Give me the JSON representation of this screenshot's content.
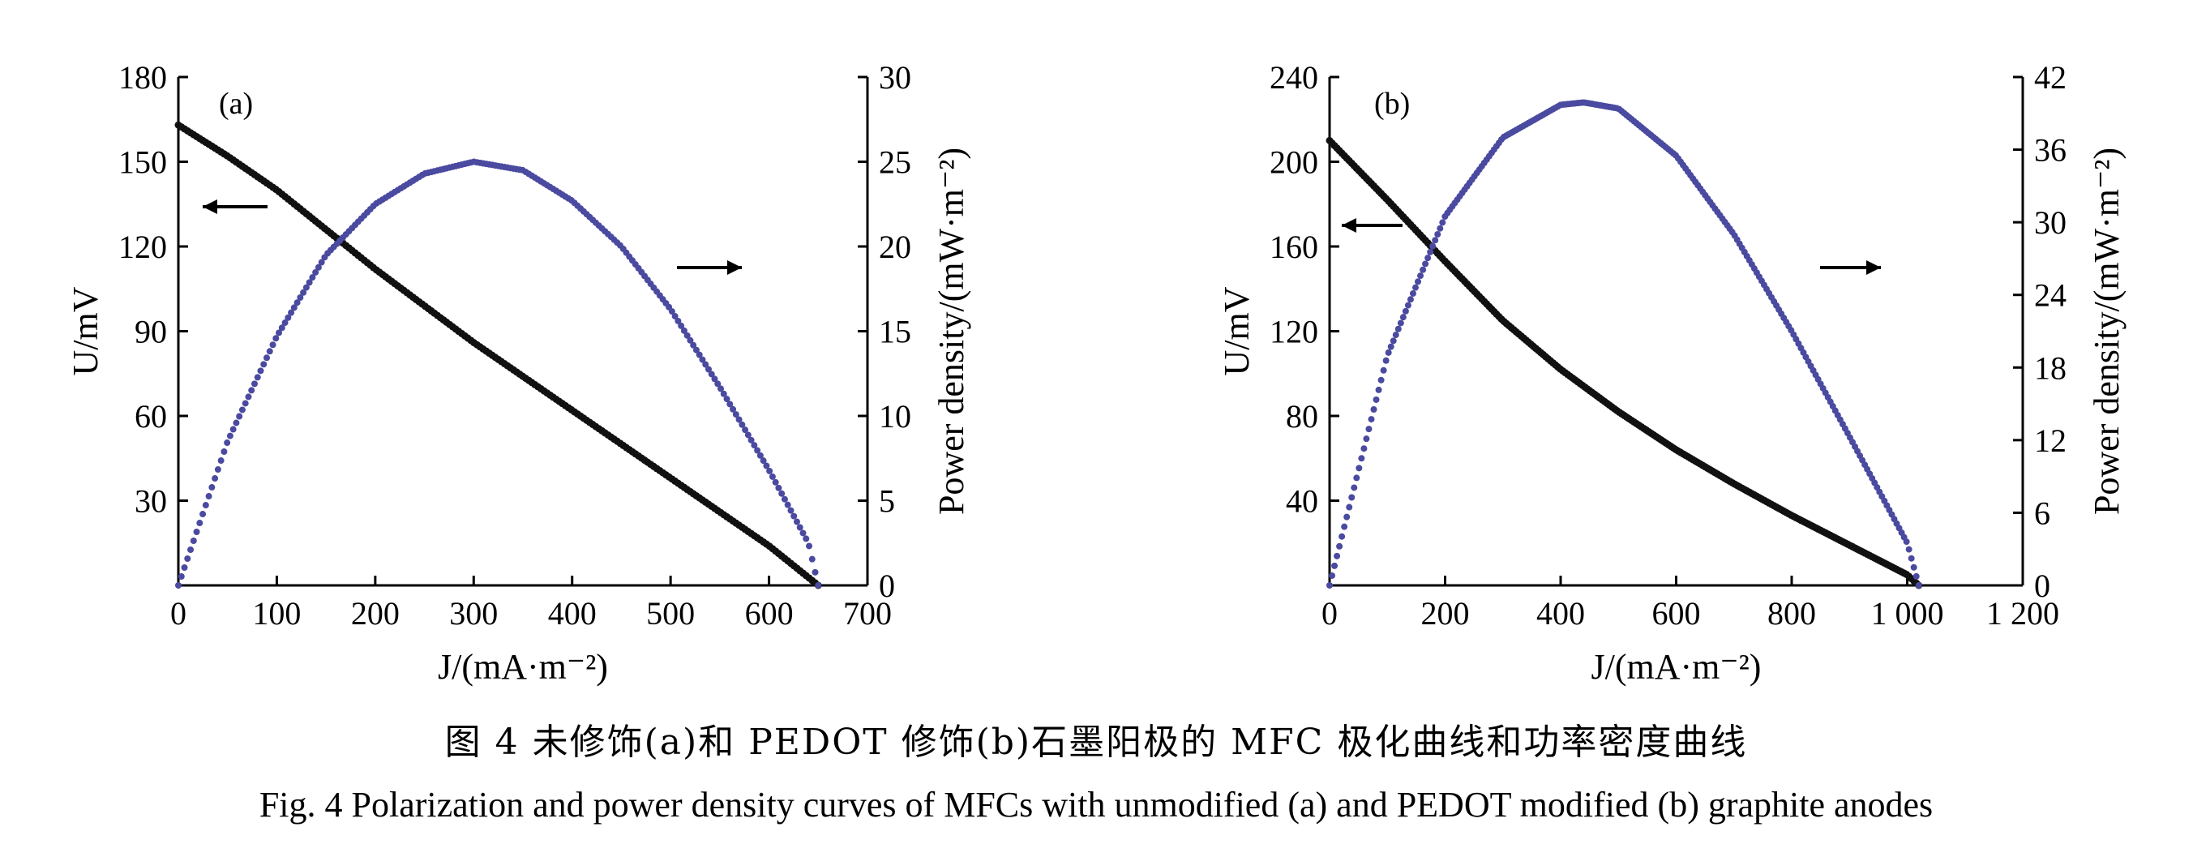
{
  "chart_data": [
    {
      "type": "line",
      "panel_label": "(a)",
      "xlabel": "J/(mA·m⁻²)",
      "ylabel": "U/mV",
      "y2label": "Power density/(mW·m⁻²)",
      "xlim": [
        0,
        700
      ],
      "ylim": [
        0,
        180
      ],
      "y2lim": [
        0,
        30
      ],
      "xticks": [
        "0",
        "100",
        "200",
        "300",
        "400",
        "500",
        "600",
        "700"
      ],
      "yticks": [
        "30",
        "60",
        "90",
        "120",
        "150",
        "180"
      ],
      "y2ticks": [
        "0",
        "5",
        "10",
        "15",
        "20",
        "25",
        "30"
      ],
      "colors": {
        "voltage": "#111111",
        "power": "#4a4aa0"
      },
      "series": [
        {
          "axis": "left",
          "x": [
            0,
            50,
            100,
            150,
            200,
            250,
            300,
            350,
            400,
            450,
            500,
            550,
            600,
            650
          ],
          "values": [
            163,
            152,
            140,
            126,
            112,
            99,
            86,
            74,
            62,
            50,
            38,
            26,
            14,
            0
          ]
        },
        {
          "axis": "right",
          "x": [
            0,
            50,
            100,
            150,
            200,
            250,
            300,
            350,
            400,
            450,
            500,
            550,
            600,
            640,
            650
          ],
          "values": [
            0,
            8.5,
            14.7,
            19.5,
            22.5,
            24.3,
            25.0,
            24.5,
            22.7,
            20.0,
            16.3,
            11.7,
            6.8,
            2.5,
            0
          ]
        }
      ]
    },
    {
      "type": "line",
      "panel_label": "(b)",
      "xlabel": "J/(mA·m⁻²)",
      "ylabel": "U/mV",
      "y2label": "Power density/(mW·m⁻²)",
      "xlim": [
        0,
        1200
      ],
      "ylim": [
        0,
        240
      ],
      "y2lim": [
        0,
        42
      ],
      "xticks": [
        "0",
        "200",
        "400",
        "600",
        "800",
        "1 000",
        "1 200"
      ],
      "yticks": [
        "40",
        "80",
        "120",
        "160",
        "200",
        "240"
      ],
      "y2ticks": [
        "0",
        "6",
        "12",
        "18",
        "24",
        "30",
        "36",
        "42"
      ],
      "colors": {
        "voltage": "#111111",
        "power": "#4a4aa0"
      },
      "series": [
        {
          "axis": "left",
          "x": [
            0,
            100,
            200,
            300,
            400,
            500,
            600,
            700,
            800,
            900,
            1000,
            1020
          ],
          "values": [
            210,
            182,
            153,
            125,
            102,
            82,
            64,
            48,
            33,
            19,
            5,
            0
          ]
        },
        {
          "axis": "right",
          "x": [
            0,
            100,
            200,
            300,
            400,
            440,
            500,
            600,
            700,
            800,
            900,
            1000,
            1020
          ],
          "values": [
            0,
            19.0,
            30.5,
            37.0,
            39.7,
            39.9,
            39.4,
            35.5,
            29.0,
            21.0,
            12.3,
            3.5,
            0
          ]
        }
      ]
    }
  ],
  "caption": {
    "cn": "图 4   未修饰(a)和 PEDOT 修饰(b)石墨阳极的 MFC 极化曲线和功率密度曲线",
    "en": "Fig. 4   Polarization and power density curves of MFCs with unmodified (a) and PEDOT modified (b) graphite anodes"
  }
}
